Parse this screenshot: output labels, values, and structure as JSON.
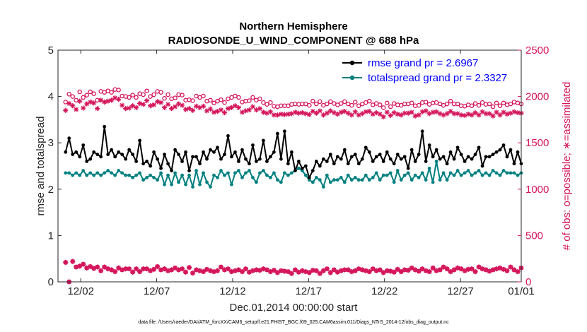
{
  "chart_data": {
    "type": "line",
    "title": "Northern Hemisphere",
    "subtitle": "RADIOSONDE_U_WIND_COMPONENT @ 688 hPa",
    "xlabel": "Dec.01,2014 00:00:00 start",
    "ylabel_left": "rmse and totalspread",
    "ylabel_right": "# of obs: o=possible; ∗=assimilated",
    "xlim": [
      0.5,
      31.0
    ],
    "ylim_left": [
      0,
      5
    ],
    "ylim_right": [
      0,
      2500
    ],
    "x_ticks": [
      {
        "x": 2,
        "label": "12/02"
      },
      {
        "x": 7,
        "label": "12/07"
      },
      {
        "x": 12,
        "label": "12/12"
      },
      {
        "x": 17,
        "label": "12/17"
      },
      {
        "x": 22,
        "label": "12/22"
      },
      {
        "x": 27,
        "label": "12/27"
      },
      {
        "x": 31,
        "label": "01/01"
      }
    ],
    "y_ticks_left": [
      "0",
      "1",
      "2",
      "3",
      "4",
      "5"
    ],
    "y_ticks_right": [
      "0",
      "500",
      "1000",
      "1500",
      "2000",
      "2500"
    ],
    "legend": {
      "placement": "top-right",
      "entries": [
        "rmse grand pr = 2.6967",
        "totalspread grand pr = 2.3327"
      ]
    },
    "footnote": "data file: /Users/raeder/DAI/ATM_forcXX/CAM6_setup/f.e21.FHIST_BGC.f09_025.CAM6assim.011/Diags_NTrS_2014-12/obs_diag_output.nc",
    "colors": {
      "rmse": "#000000",
      "spread": "#008080",
      "obs": "#d4145a"
    },
    "series": [
      {
        "name": "rmse",
        "axis": "left",
        "values": [
          2.8,
          3.1,
          2.75,
          2.8,
          2.7,
          2.95,
          2.6,
          2.65,
          2.8,
          2.75,
          2.7,
          3.35,
          2.75,
          2.85,
          2.7,
          2.8,
          2.75,
          2.65,
          2.85,
          2.75,
          2.6,
          3.05,
          2.55,
          2.6,
          2.5,
          2.8,
          2.65,
          2.45,
          2.75,
          2.55,
          2.4,
          2.85,
          2.75,
          2.6,
          2.8,
          2.4,
          2.7,
          2.7,
          2.55,
          2.8,
          2.65,
          2.85,
          2.8,
          2.9,
          2.65,
          2.75,
          3.15,
          2.7,
          2.8,
          2.6,
          2.85,
          2.65,
          2.55,
          2.95,
          2.6,
          2.65,
          3.05,
          2.6,
          2.7,
          2.8,
          3.2,
          2.65,
          3.25,
          2.55,
          2.8,
          2.4,
          2.6,
          2.45,
          2.5,
          2.25,
          2.4,
          2.6,
          2.5,
          2.65,
          2.6,
          2.75,
          2.55,
          2.7,
          2.65,
          2.85,
          2.55,
          2.7,
          2.75,
          2.55,
          2.65,
          2.9,
          2.8,
          2.6,
          2.7,
          2.75,
          2.6,
          2.8,
          2.65,
          2.55,
          2.75,
          2.65,
          2.7,
          2.45,
          2.85,
          2.6,
          2.75,
          3.25,
          2.6,
          2.95,
          2.7,
          2.85,
          2.65,
          2.7,
          2.55,
          2.8,
          2.65,
          2.9,
          2.75,
          2.6,
          2.7,
          2.65,
          2.75,
          2.9,
          2.5,
          2.7,
          2.7,
          2.75,
          2.8,
          2.85,
          2.95,
          2.7,
          2.85,
          2.55,
          2.8,
          2.55
        ]
      },
      {
        "name": "totalspread",
        "axis": "left",
        "values": [
          2.35,
          2.35,
          2.3,
          2.35,
          2.3,
          2.4,
          2.3,
          2.35,
          2.3,
          2.35,
          2.3,
          2.35,
          2.4,
          2.35,
          2.3,
          2.4,
          2.35,
          2.3,
          2.3,
          2.25,
          2.3,
          2.35,
          2.2,
          2.25,
          2.3,
          2.25,
          2.2,
          2.35,
          2.1,
          2.3,
          2.1,
          2.35,
          2.15,
          2.3,
          2.1,
          2.3,
          2.05,
          2.4,
          2.1,
          2.35,
          2.15,
          2.05,
          2.3,
          2.25,
          2.4,
          2.3,
          2.35,
          2.1,
          2.35,
          2.4,
          2.25,
          2.35,
          2.4,
          2.25,
          2.15,
          2.35,
          2.4,
          2.3,
          2.25,
          2.35,
          2.2,
          2.15,
          2.35,
          2.3,
          2.35,
          2.4,
          2.45,
          2.4,
          2.3,
          2.2,
          2.15,
          2.25,
          2.2,
          2.05,
          2.3,
          2.15,
          2.2,
          2.2,
          2.25,
          2.15,
          2.3,
          2.2,
          2.25,
          2.2,
          2.2,
          2.3,
          2.2,
          2.25,
          2.35,
          2.2,
          2.3,
          2.3,
          2.35,
          2.15,
          2.4,
          2.2,
          2.3,
          2.35,
          2.2,
          2.3,
          2.25,
          2.35,
          2.2,
          2.45,
          2.15,
          2.6,
          2.2,
          2.35,
          2.2,
          2.35,
          2.3,
          2.4,
          2.3,
          2.35,
          2.4,
          2.3,
          2.35,
          2.4,
          2.3,
          2.35,
          2.3,
          2.4,
          2.35,
          2.3,
          2.4,
          2.35,
          2.35,
          2.35,
          2.3,
          2.35
        ]
      },
      {
        "name": "possible",
        "axis": "right",
        "values": [
          1940,
          2025,
          2000,
          1960,
          2050,
          1990,
          2015,
          2050,
          2030,
          1960,
          2055,
          2045,
          2060,
          2045,
          2075,
          2070,
          2005,
          2000,
          1990,
          2015,
          1990,
          2030,
          2020,
          2060,
          2000,
          2020,
          2055,
          2045,
          1980,
          2020,
          1975,
          1985,
          2020,
          2015,
          1960,
          1965,
          1955,
          2005,
          1990,
          2005,
          1950,
          1960,
          1930,
          1950,
          1965,
          1935,
          1975,
          1990,
          2005,
          1990,
          1940,
          1950,
          1955,
          1990,
          1960,
          1975,
          1935,
          1915,
          1935,
          1895,
          1890,
          1900,
          1900,
          1900,
          1915,
          1920,
          1915,
          1920,
          1920,
          1905,
          1950,
          1920,
          1945,
          1905,
          1920,
          1945,
          1925,
          1910,
          1925,
          1945,
          1920,
          1905,
          1940,
          1900,
          1920,
          1935,
          1950,
          1910,
          1925,
          1910,
          1880,
          1930,
          1890,
          1925,
          1910,
          1905,
          1920,
          1920,
          1930,
          1900,
          1905,
          1935,
          1940,
          1915,
          1930,
          1935,
          1920,
          1905,
          1920,
          1950,
          1920,
          1920,
          1900,
          1895,
          1910,
          1900,
          1925,
          1905,
          1935,
          1915,
          1920,
          1890,
          1930,
          1900,
          1930,
          1910,
          1920,
          1940,
          1930,
          1920
        ]
      },
      {
        "name": "assimilated",
        "axis": "right",
        "values": [
          1850,
          1925,
          1900,
          1860,
          1950,
          1875,
          1920,
          1940,
          1930,
          1870,
          1960,
          1940,
          1950,
          1960,
          1985,
          1970,
          1905,
          1870,
          1875,
          1900,
          1880,
          1925,
          1915,
          1955,
          1900,
          1910,
          1945,
          1935,
          1880,
          1915,
          1870,
          1890,
          1920,
          1905,
          1860,
          1870,
          1850,
          1895,
          1880,
          1895,
          1845,
          1865,
          1830,
          1840,
          1855,
          1825,
          1870,
          1880,
          1900,
          1880,
          1830,
          1845,
          1855,
          1890,
          1855,
          1870,
          1830,
          1820,
          1835,
          1800,
          1800,
          1810,
          1805,
          1810,
          1815,
          1830,
          1820,
          1825,
          1815,
          1805,
          1840,
          1820,
          1845,
          1800,
          1820,
          1845,
          1825,
          1810,
          1830,
          1840,
          1820,
          1800,
          1835,
          1800,
          1815,
          1835,
          1840,
          1810,
          1825,
          1810,
          1780,
          1830,
          1795,
          1825,
          1810,
          1800,
          1820,
          1820,
          1830,
          1790,
          1800,
          1835,
          1845,
          1815,
          1830,
          1835,
          1815,
          1800,
          1815,
          1840,
          1815,
          1815,
          1800,
          1795,
          1810,
          1800,
          1825,
          1800,
          1835,
          1815,
          1815,
          1790,
          1830,
          1800,
          1830,
          1810,
          1820,
          1835,
          1825,
          1820
        ]
      },
      {
        "name": "possible_lower",
        "axis": "right",
        "values": [
          210,
          0,
          220,
          160,
          170,
          190,
          150,
          165,
          145,
          160,
          120,
          160,
          140,
          130,
          110,
          150,
          130,
          140,
          140,
          105,
          140,
          110,
          140,
          140,
          120,
          135,
          165,
          130,
          140,
          120,
          130,
          150,
          130,
          140,
          105,
          155,
          95,
          130,
          120,
          110,
          135,
          120,
          110,
          120,
          160,
          130,
          140,
          110,
          120,
          130,
          110,
          140,
          105,
          120,
          130,
          125,
          140,
          130,
          110,
          125,
          100,
          120,
          115,
          110,
          90,
          130,
          105,
          120,
          110,
          100,
          125,
          120,
          90,
          120,
          140,
          100,
          130,
          105,
          120,
          130,
          130,
          110,
          120,
          140,
          130,
          120,
          110,
          140,
          120,
          130,
          100,
          120,
          115,
          105,
          135,
          110,
          130,
          125,
          150,
          130,
          115,
          140,
          120,
          110,
          150,
          120,
          130,
          160,
          140,
          110,
          130,
          150,
          140,
          120,
          135,
          140,
          110,
          160,
          140,
          130,
          115,
          130,
          140,
          150,
          135,
          120,
          160,
          130,
          110,
          150
        ]
      },
      {
        "name": "assimilated_lower",
        "axis": "right",
        "values": [
          210,
          0,
          220,
          160,
          170,
          190,
          150,
          165,
          145,
          160,
          120,
          160,
          140,
          130,
          110,
          150,
          130,
          140,
          140,
          105,
          140,
          110,
          140,
          140,
          120,
          135,
          165,
          130,
          140,
          120,
          130,
          150,
          130,
          140,
          105,
          155,
          95,
          130,
          120,
          110,
          135,
          120,
          110,
          120,
          160,
          130,
          140,
          110,
          120,
          130,
          110,
          140,
          105,
          120,
          130,
          125,
          140,
          130,
          110,
          125,
          100,
          120,
          115,
          110,
          90,
          130,
          105,
          120,
          110,
          100,
          125,
          120,
          90,
          120,
          140,
          100,
          130,
          105,
          120,
          130,
          130,
          110,
          120,
          140,
          130,
          120,
          110,
          140,
          120,
          130,
          100,
          120,
          115,
          105,
          135,
          110,
          130,
          125,
          150,
          130,
          115,
          140,
          120,
          110,
          150,
          120,
          130,
          160,
          140,
          110,
          130,
          150,
          140,
          120,
          135,
          140,
          110,
          160,
          140,
          130,
          115,
          130,
          140,
          150,
          135,
          120,
          160,
          130,
          110,
          150
        ]
      }
    ]
  }
}
